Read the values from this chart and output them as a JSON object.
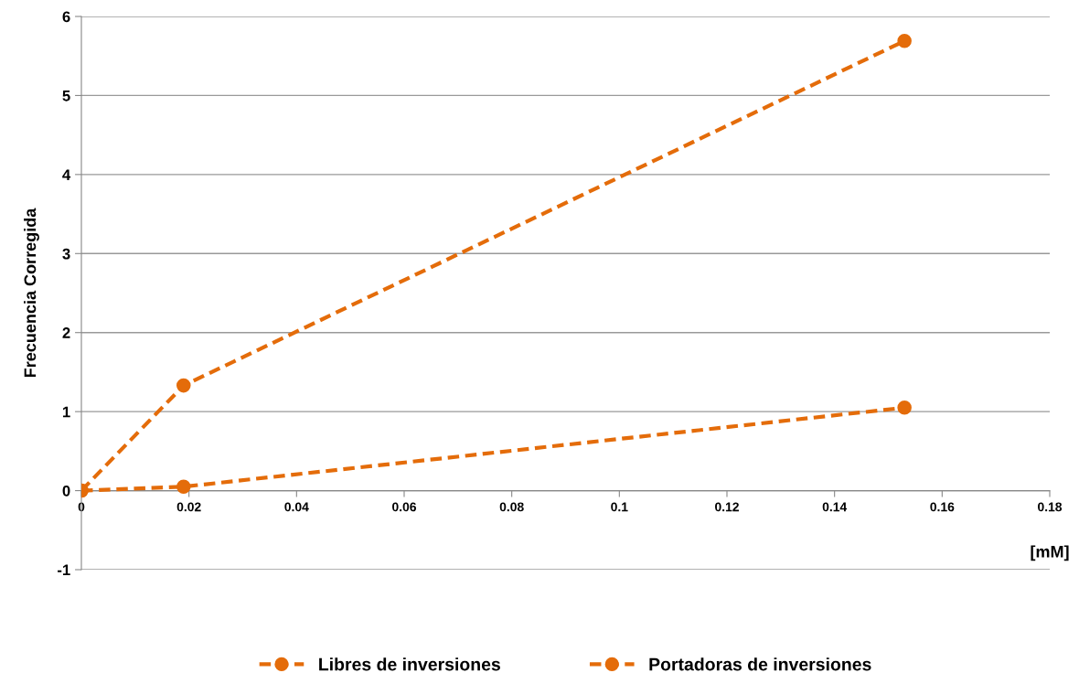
{
  "chart_data": {
    "type": "line",
    "xlabel": "[mM]",
    "ylabel": "Frecuencia Corregida",
    "series": [
      {
        "name": "Libres de inversiones",
        "color": "#e46c0a",
        "x": [
          0,
          0.019,
          0.153
        ],
        "values": [
          0,
          1.33,
          5.69
        ]
      },
      {
        "name": "Portadoras de inversiones",
        "color": "#e46c0a",
        "x": [
          0,
          0.019,
          0.153
        ],
        "values": [
          0,
          0.05,
          1.05
        ]
      }
    ],
    "xlim": [
      0,
      0.18
    ],
    "xticks": [
      0,
      0.02,
      0.04,
      0.06,
      0.08,
      0.1,
      0.12,
      0.14,
      0.16,
      0.18
    ],
    "ylim": [
      -1,
      6
    ],
    "yticks": [
      -1,
      0,
      1,
      2,
      3,
      4,
      5,
      6
    ],
    "grid": "y",
    "legend": "bottom",
    "marker": "circle",
    "line_style": "dashed"
  }
}
